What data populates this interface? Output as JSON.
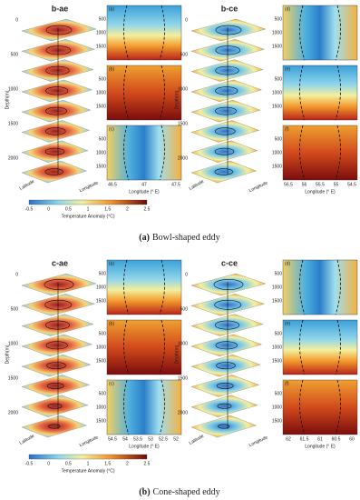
{
  "figure": {
    "depth_label": "Depth(m)",
    "depth_ticks": [
      "0",
      "500",
      "1000",
      "1500",
      "2000"
    ],
    "latitude_label": "Latitude",
    "longitude_label": "Longitude",
    "section_x_label": "Longitude (° E)",
    "colorbar_label": "Temperature Anomaly (°C)",
    "colorbar_ticks": [
      "-0.5",
      "0",
      "0.5",
      "1",
      "1.5",
      "2",
      "2.5"
    ],
    "panels": [
      {
        "caption_label": "(a)",
        "caption_text": "Bowl-shaped eddy",
        "eddies": [
          {
            "title": "b-ae",
            "sections": [
              "(a)",
              "(b)",
              "(c)"
            ],
            "section_ticks": [
              "46.5",
              "47",
              "47.5"
            ]
          },
          {
            "title": "b-ce",
            "sections": [
              "(d)",
              "(e)",
              "(f)"
            ],
            "section_ticks": [
              "56.5",
              "56",
              "55.5",
              "55",
              "54.5"
            ]
          }
        ]
      },
      {
        "caption_label": "(b)",
        "caption_text": "Cone-shaped eddy",
        "eddies": [
          {
            "title": "c-ae",
            "sections": [
              "(a)",
              "(b)",
              "(c)"
            ],
            "section_ticks": [
              "54.5",
              "54",
              "53.5",
              "53",
              "52.5",
              "52"
            ]
          },
          {
            "title": "c-ce",
            "sections": [
              "(d)",
              "(e)",
              "(f)"
            ],
            "section_ticks": [
              "62",
              "61.5",
              "61",
              "60.5",
              "60"
            ]
          }
        ]
      }
    ]
  }
}
